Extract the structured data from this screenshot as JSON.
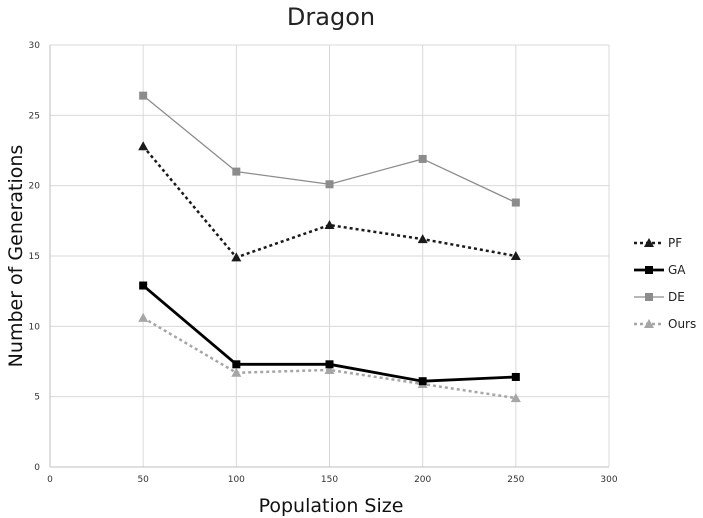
{
  "chart_data": {
    "type": "line",
    "title": "Dragon",
    "xlabel": "Population Size",
    "ylabel": "Number of Generations",
    "xlim": [
      0,
      300
    ],
    "ylim": [
      0,
      30
    ],
    "x_ticks": [
      "0",
      "50",
      "100",
      "150",
      "200",
      "250",
      "300"
    ],
    "y_ticks": [
      "0",
      "5",
      "10",
      "15",
      "20",
      "25",
      "30"
    ],
    "grid": "vertical and horizontal",
    "legend_position": "right",
    "x": [
      50,
      100,
      150,
      200,
      250
    ],
    "series": [
      {
        "name": "PF",
        "values": [
          22.8,
          14.9,
          17.2,
          16.2,
          15.0
        ],
        "color": "#1a1a1a",
        "line": "dotted",
        "marker": "triangle"
      },
      {
        "name": "GA",
        "values": [
          12.9,
          7.3,
          7.3,
          6.1,
          6.4
        ],
        "color": "#000000",
        "line": "solid-thick",
        "marker": "square"
      },
      {
        "name": "DE",
        "values": [
          26.4,
          21.0,
          20.1,
          21.9,
          18.8
        ],
        "color": "#8c8c8c",
        "line": "solid-thin",
        "marker": "square"
      },
      {
        "name": "Ours",
        "values": [
          10.6,
          6.7,
          6.9,
          5.9,
          4.9
        ],
        "color": "#a6a6a6",
        "line": "dotted",
        "marker": "triangle"
      }
    ]
  }
}
